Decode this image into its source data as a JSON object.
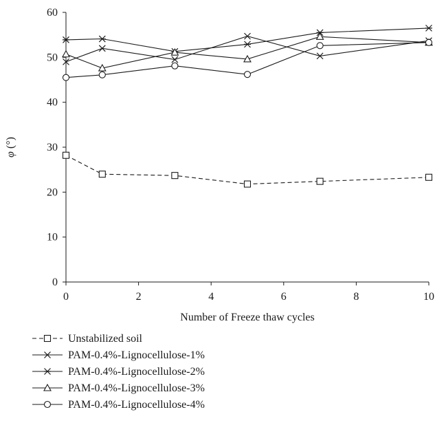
{
  "chart_data": {
    "type": "line",
    "xlabel": "Number of Freeze thaw cycles",
    "ylabel": "φ (°)",
    "ylabel_symbol": "φ",
    "ylabel_unit": " (°)",
    "xlim": [
      0,
      10
    ],
    "ylim": [
      0,
      60
    ],
    "xticks": [
      0,
      2,
      4,
      6,
      8,
      10
    ],
    "yticks": [
      0,
      10,
      20,
      30,
      40,
      50,
      60
    ],
    "grid": false,
    "legend_position": "bottom",
    "x": [
      0,
      1,
      3,
      5,
      7,
      10
    ],
    "series": [
      {
        "name": "Unstabilized soil",
        "marker": "square",
        "dash": "dashed",
        "values": [
          28.2,
          24.0,
          23.7,
          21.8,
          22.4,
          23.3
        ]
      },
      {
        "name": "PAM-0.4%-Lignocellulose-1%",
        "marker": "x",
        "dash": "solid",
        "values": [
          49.0,
          52.0,
          49.5,
          54.7,
          50.3,
          53.7
        ]
      },
      {
        "name": "PAM-0.4%-Lignocellulose-2%",
        "marker": "asterisk",
        "dash": "solid",
        "values": [
          53.9,
          54.1,
          51.3,
          52.9,
          55.5,
          56.5
        ]
      },
      {
        "name": "PAM-0.4%-Lignocellulose-3%",
        "marker": "triangle",
        "dash": "solid",
        "values": [
          50.7,
          47.6,
          51.1,
          49.6,
          54.6,
          53.3
        ]
      },
      {
        "name": "PAM-0.4%-Lignocellulose-4%",
        "marker": "circle",
        "dash": "solid",
        "values": [
          45.5,
          46.1,
          48.1,
          46.2,
          52.6,
          53.3
        ]
      }
    ]
  }
}
